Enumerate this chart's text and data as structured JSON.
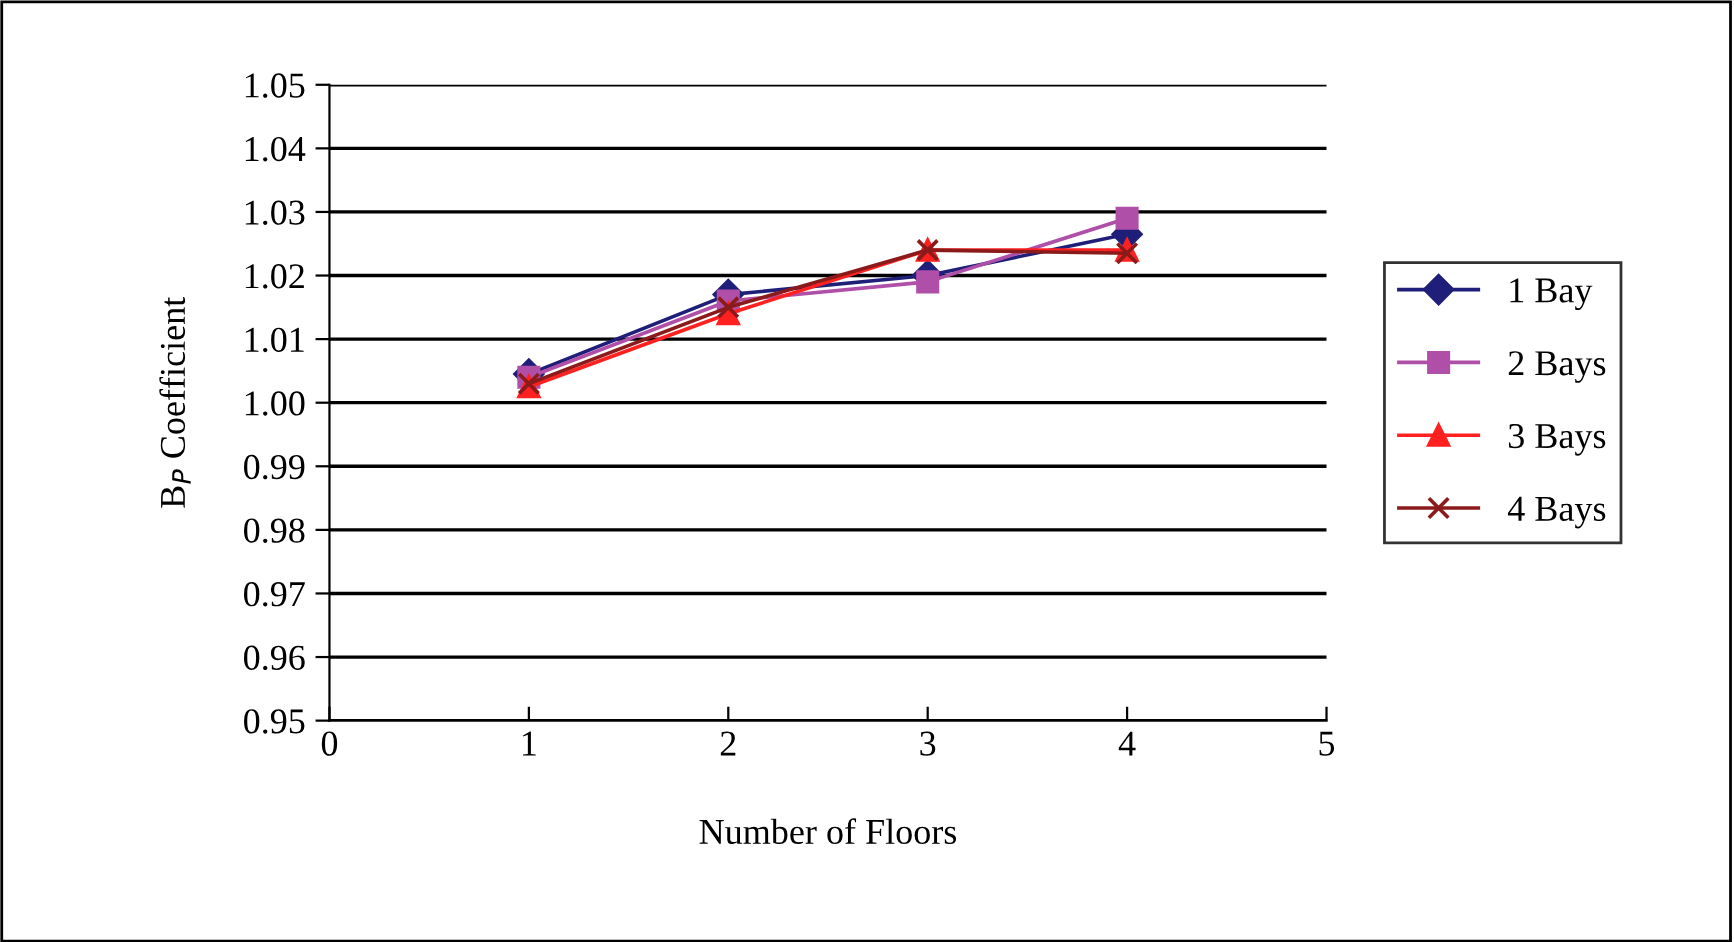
{
  "chart_data": {
    "type": "line",
    "xlabel": "Number of Floors",
    "ylabel": "B$_{P}$ Coefficient",
    "x": [
      1,
      2,
      3,
      4
    ],
    "series": [
      {
        "name": "1 Bay",
        "color": "#1f1f7a",
        "marker": "diamond",
        "values": [
          1.0045,
          1.017,
          1.02,
          1.0265
        ]
      },
      {
        "name": "2 Bays",
        "color": "#b04fa8",
        "marker": "square",
        "values": [
          1.004,
          1.016,
          1.019,
          1.029
        ]
      },
      {
        "name": "3 Bays",
        "color": "#ff2020",
        "marker": "triangle",
        "values": [
          1.0025,
          1.014,
          1.024,
          1.024
        ]
      },
      {
        "name": "4 Bays",
        "color": "#8b1a1a",
        "marker": "cross",
        "values": [
          1.003,
          1.015,
          1.024,
          1.0235
        ]
      }
    ],
    "xlim": [
      0,
      5
    ],
    "xticks": [
      0,
      1,
      2,
      3,
      4,
      5
    ],
    "ylim": [
      0.95,
      1.05
    ],
    "yticks": [
      {
        "value": 0.95,
        "label": "0.95"
      },
      {
        "value": 0.96,
        "label": "0.96"
      },
      {
        "value": 0.97,
        "label": "0.97"
      },
      {
        "value": 0.98,
        "label": "0.98"
      },
      {
        "value": 0.99,
        "label": "0.99"
      },
      {
        "value": 1.0,
        "label": "1.00"
      },
      {
        "value": 1.01,
        "label": "1.01"
      },
      {
        "value": 1.02,
        "label": "1.02"
      },
      {
        "value": 1.03,
        "label": "1.03"
      },
      {
        "value": 1.04,
        "label": "1.04"
      },
      {
        "value": 1.05,
        "label": "1.05"
      }
    ],
    "grid": "y",
    "legend": "right",
    "line_style": "solid"
  }
}
